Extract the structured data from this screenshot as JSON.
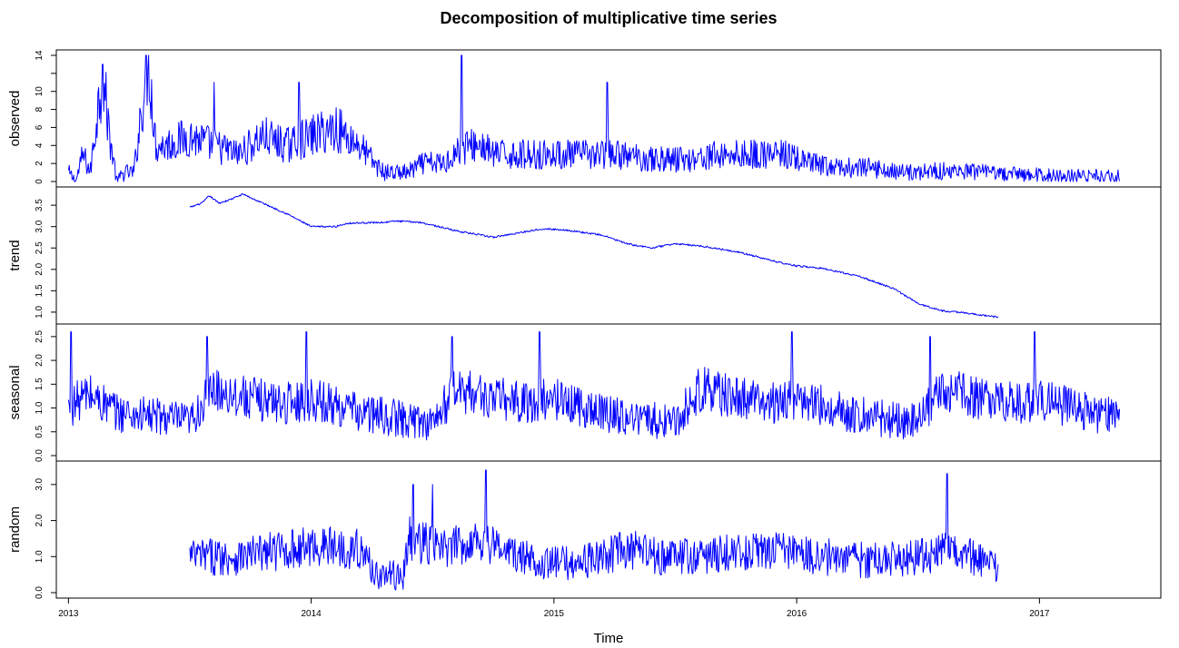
{
  "chart_data": {
    "type": "line",
    "title": "Decomposition of multiplicative time series",
    "xlabel": "Time",
    "x_range": [
      2012.95,
      2017.5
    ],
    "x_ticks": [
      2013,
      2014,
      2015,
      2016,
      2017
    ],
    "x_tick_labels": [
      "2013",
      "2014",
      "2015",
      "2016",
      "2017"
    ],
    "grid": false,
    "line_color": "#0000ff",
    "panels": [
      {
        "name": "observed",
        "ylabel": "observed",
        "ylim": [
          0,
          14
        ],
        "y_ticks": [
          0,
          2,
          4,
          6,
          8,
          10,
          12,
          14
        ],
        "y_tick_labels": [
          "0",
          "2",
          "4",
          "6",
          "8",
          "10",
          "",
          "14"
        ],
        "x_start": 2013.0,
        "x_end": 2017.33,
        "anchors": [
          [
            2013.0,
            1
          ],
          [
            2013.03,
            0
          ],
          [
            2013.06,
            3
          ],
          [
            2013.09,
            1
          ],
          [
            2013.12,
            8
          ],
          [
            2013.14,
            12
          ],
          [
            2013.17,
            5
          ],
          [
            2013.2,
            0
          ],
          [
            2013.23,
            1
          ],
          [
            2013.27,
            1
          ],
          [
            2013.3,
            8
          ],
          [
            2013.33,
            14
          ],
          [
            2013.36,
            4
          ],
          [
            2013.4,
            4
          ],
          [
            2013.5,
            5
          ],
          [
            2013.6,
            4
          ],
          [
            2013.7,
            3
          ],
          [
            2013.8,
            5
          ],
          [
            2013.9,
            4
          ],
          [
            2014.0,
            5
          ],
          [
            2014.1,
            6
          ],
          [
            2014.2,
            4
          ],
          [
            2014.26,
            2
          ],
          [
            2014.3,
            1
          ],
          [
            2014.4,
            1
          ],
          [
            2014.46,
            2
          ],
          [
            2014.55,
            2
          ],
          [
            2014.58,
            3
          ],
          [
            2014.65,
            4
          ],
          [
            2014.7,
            4
          ],
          [
            2014.75,
            3
          ],
          [
            2014.85,
            3
          ],
          [
            2014.95,
            3
          ],
          [
            2015.1,
            3
          ],
          [
            2015.25,
            3
          ],
          [
            2015.4,
            2.5
          ],
          [
            2015.55,
            2.5
          ],
          [
            2015.7,
            3
          ],
          [
            2015.85,
            3
          ],
          [
            2015.95,
            3
          ],
          [
            2016.05,
            2
          ],
          [
            2016.15,
            1.5
          ],
          [
            2016.3,
            1.5
          ],
          [
            2016.45,
            1
          ],
          [
            2016.6,
            1.2
          ],
          [
            2016.75,
            1
          ],
          [
            2016.9,
            0.8
          ],
          [
            2017.1,
            0.6
          ],
          [
            2017.33,
            0.6
          ]
        ],
        "amplitude": 1.0,
        "spikes": [
          [
            2013.14,
            13
          ],
          [
            2013.33,
            14
          ],
          [
            2013.6,
            11
          ],
          [
            2014.62,
            14
          ],
          [
            2015.22,
            11
          ],
          [
            2013.95,
            11
          ]
        ]
      },
      {
        "name": "trend",
        "ylabel": "trend",
        "ylim": [
          0.85,
          3.8
        ],
        "y_ticks": [
          1.0,
          1.5,
          2.0,
          2.5,
          3.0,
          3.5
        ],
        "y_tick_labels": [
          "1.0",
          "1.5",
          "2.0",
          "2.5",
          "3.0",
          "3.5"
        ],
        "x_start": 2013.5,
        "x_end": 2016.83,
        "anchors": [
          [
            2013.5,
            3.45
          ],
          [
            2013.55,
            3.55
          ],
          [
            2013.58,
            3.72
          ],
          [
            2013.62,
            3.55
          ],
          [
            2013.66,
            3.62
          ],
          [
            2013.72,
            3.76
          ],
          [
            2013.76,
            3.65
          ],
          [
            2013.9,
            3.3
          ],
          [
            2014.0,
            3.0
          ],
          [
            2014.1,
            3.0
          ],
          [
            2014.15,
            3.08
          ],
          [
            2014.3,
            3.1
          ],
          [
            2014.35,
            3.13
          ],
          [
            2014.45,
            3.1
          ],
          [
            2014.6,
            2.9
          ],
          [
            2014.75,
            2.75
          ],
          [
            2014.85,
            2.85
          ],
          [
            2014.95,
            2.95
          ],
          [
            2015.05,
            2.92
          ],
          [
            2015.2,
            2.8
          ],
          [
            2015.3,
            2.6
          ],
          [
            2015.4,
            2.5
          ],
          [
            2015.5,
            2.6
          ],
          [
            2015.6,
            2.55
          ],
          [
            2015.75,
            2.42
          ],
          [
            2015.9,
            2.2
          ],
          [
            2016.0,
            2.08
          ],
          [
            2016.1,
            2.03
          ],
          [
            2016.25,
            1.85
          ],
          [
            2016.4,
            1.55
          ],
          [
            2016.5,
            1.2
          ],
          [
            2016.6,
            1.03
          ],
          [
            2016.7,
            0.98
          ],
          [
            2016.83,
            0.88
          ]
        ],
        "amplitude": 0.02
      },
      {
        "name": "seasonal",
        "ylabel": "seasonal",
        "ylim": [
          0,
          2.65
        ],
        "y_ticks": [
          0.0,
          0.5,
          1.0,
          1.5,
          2.0,
          2.5
        ],
        "y_tick_labels": [
          "0.0",
          "0.5",
          "1.0",
          "1.5",
          "2.0",
          "2.5"
        ],
        "x_start": 2013.0,
        "x_end": 2017.33,
        "anchors": [
          [
            2013.0,
            1.0
          ],
          [
            2013.08,
            1.3
          ],
          [
            2013.2,
            0.9
          ],
          [
            2013.4,
            0.8
          ],
          [
            2013.5,
            0.7
          ],
          [
            2013.6,
            1.4
          ],
          [
            2013.75,
            1.2
          ],
          [
            2013.9,
            1.1
          ],
          [
            2014.0,
            1.2
          ],
          [
            2014.2,
            0.9
          ],
          [
            2014.4,
            0.75
          ],
          [
            2014.5,
            0.7
          ],
          [
            2014.6,
            1.4
          ],
          [
            2014.75,
            1.2
          ],
          [
            2014.9,
            1.1
          ],
          [
            2015.0,
            1.2
          ],
          [
            2015.2,
            0.9
          ],
          [
            2015.4,
            0.75
          ],
          [
            2015.5,
            0.7
          ],
          [
            2015.6,
            1.4
          ],
          [
            2015.75,
            1.2
          ],
          [
            2015.9,
            1.1
          ],
          [
            2016.0,
            1.2
          ],
          [
            2016.2,
            0.9
          ],
          [
            2016.4,
            0.75
          ],
          [
            2016.5,
            0.7
          ],
          [
            2016.6,
            1.4
          ],
          [
            2016.75,
            1.2
          ],
          [
            2016.9,
            1.1
          ],
          [
            2017.0,
            1.2
          ],
          [
            2017.2,
            0.9
          ],
          [
            2017.33,
            0.8
          ]
        ],
        "amplitude": 0.45,
        "spikes": [
          [
            2013.01,
            2.6
          ],
          [
            2013.98,
            2.6
          ],
          [
            2014.94,
            2.6
          ],
          [
            2015.98,
            2.6
          ],
          [
            2016.98,
            2.6
          ],
          [
            2013.57,
            2.5
          ],
          [
            2014.58,
            2.5
          ],
          [
            2016.55,
            2.5
          ]
        ]
      },
      {
        "name": "random",
        "ylabel": "random",
        "ylim": [
          0,
          3.5
        ],
        "y_ticks": [
          0.0,
          1.0,
          2.0,
          3.0
        ],
        "y_tick_labels": [
          "0.0",
          "1.0",
          "2.0",
          "3.0"
        ],
        "x_start": 2013.5,
        "x_end": 2016.83,
        "anchors": [
          [
            2013.5,
            1.0
          ],
          [
            2013.7,
            1.0
          ],
          [
            2013.9,
            1.2
          ],
          [
            2014.05,
            1.3
          ],
          [
            2014.2,
            1.2
          ],
          [
            2014.27,
            0.5
          ],
          [
            2014.38,
            0.45
          ],
          [
            2014.4,
            1.5
          ],
          [
            2014.55,
            1.2
          ],
          [
            2014.7,
            1.5
          ],
          [
            2014.85,
            1.0
          ],
          [
            2015.0,
            0.8
          ],
          [
            2015.15,
            0.9
          ],
          [
            2015.3,
            1.2
          ],
          [
            2015.45,
            1.0
          ],
          [
            2015.6,
            1.0
          ],
          [
            2015.75,
            1.1
          ],
          [
            2015.9,
            1.2
          ],
          [
            2016.1,
            1.0
          ],
          [
            2016.3,
            0.9
          ],
          [
            2016.5,
            1.0
          ],
          [
            2016.65,
            1.2
          ],
          [
            2016.83,
            0.6
          ]
        ],
        "amplitude": 0.55,
        "spikes": [
          [
            2014.72,
            3.4
          ],
          [
            2016.62,
            3.3
          ],
          [
            2014.42,
            3.0
          ],
          [
            2014.5,
            3.0
          ]
        ]
      }
    ]
  }
}
